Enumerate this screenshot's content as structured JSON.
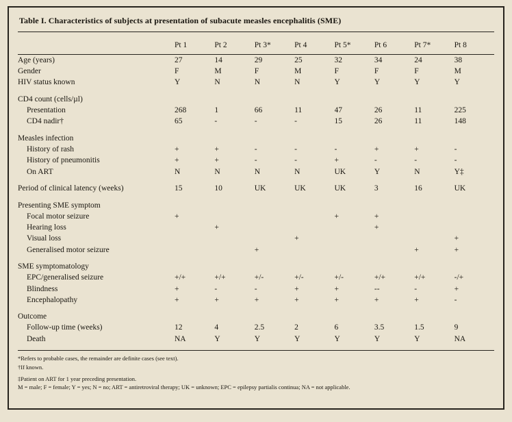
{
  "page": {
    "background_color": "#eae3d1",
    "border_color": "#26231d",
    "text_color": "#18150f"
  },
  "table": {
    "title": "Table I. Characteristics of subjects at presentation of subacute measles encephalitis (SME)",
    "columns": [
      "",
      "Pt 1",
      "Pt 2",
      "Pt 3*",
      "Pt 4",
      "Pt 5*",
      "Pt 6",
      "Pt 7*",
      "Pt 8"
    ],
    "rows": [
      {
        "label": "Age (years)",
        "type": "data",
        "indent": false,
        "spacer": false,
        "values": [
          "27",
          "14",
          "29",
          "25",
          "32",
          "34",
          "24",
          "38"
        ]
      },
      {
        "label": "Gender",
        "type": "data",
        "indent": false,
        "spacer": false,
        "values": [
          "F",
          "M",
          "F",
          "M",
          "F",
          "F",
          "F",
          "M"
        ]
      },
      {
        "label": "HIV status known",
        "type": "data",
        "indent": false,
        "spacer": false,
        "values": [
          "Y",
          "N",
          "N",
          "N",
          "Y",
          "Y",
          "Y",
          "Y"
        ]
      },
      {
        "label": "CD4 count (cells/µl)",
        "type": "section",
        "indent": false,
        "spacer": true,
        "values": []
      },
      {
        "label": "Presentation",
        "type": "data",
        "indent": true,
        "spacer": false,
        "values": [
          "268",
          "1",
          "66",
          "11",
          "47",
          "26",
          "11",
          "225"
        ]
      },
      {
        "label": "CD4 nadir†",
        "type": "data",
        "indent": true,
        "spacer": false,
        "values": [
          "65",
          "-",
          "-",
          "-",
          "15",
          "26",
          "11",
          "148"
        ]
      },
      {
        "label": "Measles infection",
        "type": "section",
        "indent": false,
        "spacer": true,
        "values": []
      },
      {
        "label": "History of rash",
        "type": "data",
        "indent": true,
        "spacer": false,
        "values": [
          "+",
          "+",
          "-",
          "-",
          "-",
          "+",
          "+",
          "-"
        ]
      },
      {
        "label": "History of pneumonitis",
        "type": "data",
        "indent": true,
        "spacer": false,
        "values": [
          "+",
          "+",
          "-",
          "-",
          "+",
          "-",
          "-",
          "-"
        ]
      },
      {
        "label": "On ART",
        "type": "data",
        "indent": true,
        "spacer": false,
        "values": [
          "N",
          "N",
          "N",
          "N",
          "UK",
          "Y",
          "N",
          "Y‡"
        ]
      },
      {
        "label": "Period of clinical latency (weeks)",
        "type": "data",
        "indent": false,
        "spacer": true,
        "values": [
          "15",
          "10",
          "UK",
          "UK",
          "UK",
          "3",
          "16",
          "UK"
        ]
      },
      {
        "label": "Presenting SME symptom",
        "type": "section",
        "indent": false,
        "spacer": true,
        "values": []
      },
      {
        "label": "Focal motor seizure",
        "type": "data",
        "indent": true,
        "spacer": false,
        "values": [
          "+",
          "",
          "",
          "",
          "+",
          "+",
          "",
          ""
        ]
      },
      {
        "label": "Hearing loss",
        "type": "data",
        "indent": true,
        "spacer": false,
        "values": [
          "",
          "+",
          "",
          "",
          "",
          "+",
          "",
          ""
        ]
      },
      {
        "label": "Visual loss",
        "type": "data",
        "indent": true,
        "spacer": false,
        "values": [
          "",
          "",
          "",
          "+",
          "",
          "",
          "",
          "+"
        ]
      },
      {
        "label": "Generalised motor seizure",
        "type": "data",
        "indent": true,
        "spacer": false,
        "values": [
          "",
          "",
          "+",
          "",
          "",
          "",
          "+",
          "+"
        ]
      },
      {
        "label": "SME symptomatology",
        "type": "section",
        "indent": false,
        "spacer": true,
        "values": []
      },
      {
        "label": "EPC/generalised seizure",
        "type": "data",
        "indent": true,
        "spacer": false,
        "values": [
          "+/+",
          "+/+",
          "+/-",
          "+/-",
          "+/-",
          "+/+",
          "+/+",
          "-/+"
        ]
      },
      {
        "label": "Blindness",
        "type": "data",
        "indent": true,
        "spacer": false,
        "values": [
          "+",
          "-",
          "-",
          "+",
          "+",
          "--",
          "-",
          "+"
        ]
      },
      {
        "label": "Encephalopathy",
        "type": "data",
        "indent": true,
        "spacer": false,
        "values": [
          "+",
          "+",
          "+",
          "+",
          "+",
          "+",
          "+",
          "-"
        ]
      },
      {
        "label": "Outcome",
        "type": "section",
        "indent": false,
        "spacer": true,
        "values": []
      },
      {
        "label": "Follow-up time (weeks)",
        "type": "data",
        "indent": true,
        "spacer": false,
        "values": [
          "12",
          "4",
          "2.5",
          "2",
          "6",
          "3.5",
          "1.5",
          "9"
        ]
      },
      {
        "label": "Death",
        "type": "data",
        "indent": true,
        "spacer": false,
        "values": [
          "NA",
          "Y",
          "Y",
          "Y",
          "Y",
          "Y",
          "Y",
          "NA"
        ]
      }
    ],
    "footnotes": [
      "*Refers to probable cases, the remainder are definite cases (see text).",
      "†If known.",
      "‡Patient on ART for 1 year preceding presentation.",
      "M = male; F = female; Y = yes; N = no; ART = antiretroviral therapy; UK = unknown; EPC = epilepsy partialis continua; NA = not applicable."
    ]
  }
}
